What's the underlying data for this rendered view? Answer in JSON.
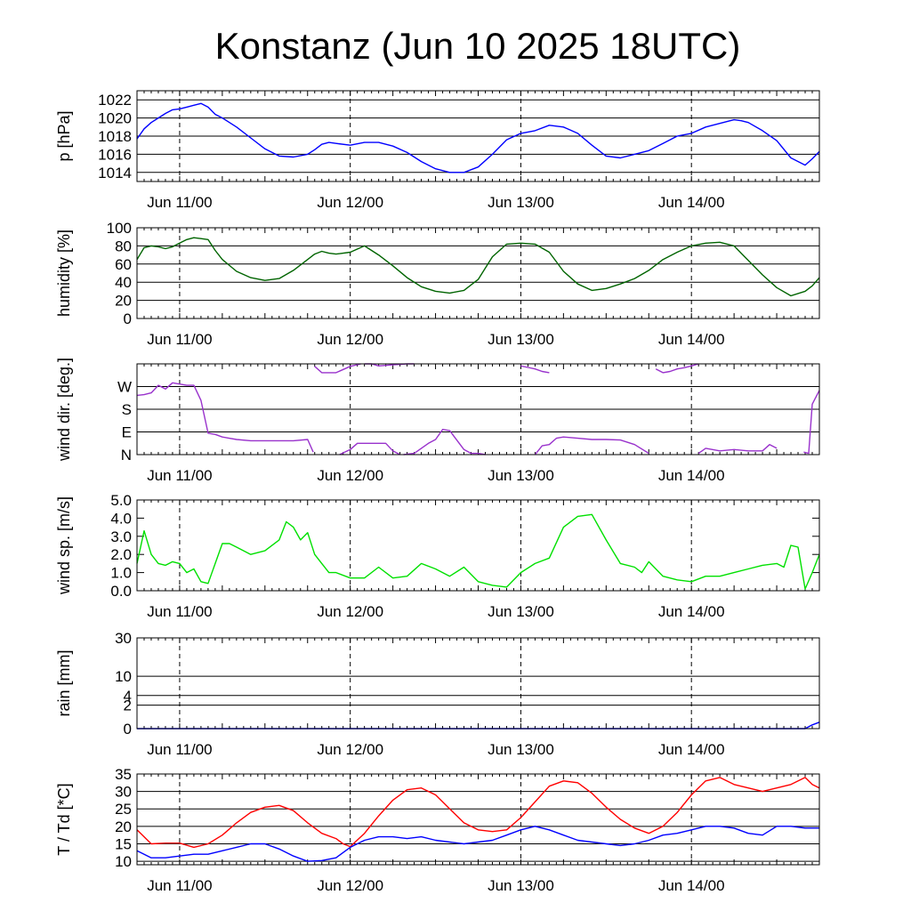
{
  "title": "Konstanz (Jun 10 2025 18UTC)",
  "x_tick_labels": [
    "Jun 11/00",
    "Jun 12/00",
    "Jun 13/00",
    "Jun 14/00"
  ],
  "chart_data": [
    {
      "type": "line",
      "ylabel": "p [hPa]",
      "x_unit": "hours since Jun 10 18UTC",
      "xlim": [
        0,
        96
      ],
      "ylim": [
        1013,
        1023
      ],
      "yticks": [
        1014,
        1016,
        1018,
        1020,
        1022
      ],
      "ytick_labels": [
        "1014",
        "1016",
        "1018",
        "1020",
        "1022"
      ],
      "grid": true,
      "series": [
        {
          "color": "#0000ff",
          "x": [
            0,
            1,
            2,
            3,
            4,
            5,
            6,
            7,
            8,
            9,
            10,
            11,
            12,
            14,
            16,
            18,
            20,
            22,
            24,
            25,
            26,
            27,
            28,
            30,
            32,
            34,
            36,
            38,
            40,
            42,
            44,
            46,
            48,
            50,
            52,
            54,
            56,
            58,
            60,
            62,
            64,
            66,
            68,
            70,
            72,
            74,
            76,
            78,
            80,
            82,
            84,
            85,
            86,
            88,
            90,
            92,
            94,
            95,
            96
          ],
          "y": [
            1017.7,
            1018.8,
            1019.5,
            1020.0,
            1020.5,
            1020.9,
            1021.0,
            1021.2,
            1021.4,
            1021.6,
            1021.2,
            1020.4,
            1020.0,
            1019.0,
            1017.8,
            1016.6,
            1015.8,
            1015.7,
            1016.0,
            1016.5,
            1017.1,
            1017.3,
            1017.2,
            1017.0,
            1017.3,
            1017.3,
            1016.9,
            1016.2,
            1015.2,
            1014.4,
            1014.0,
            1014.0,
            1014.6,
            1016.0,
            1017.6,
            1018.3,
            1018.6,
            1019.2,
            1019.0,
            1018.3,
            1017.0,
            1015.8,
            1015.6,
            1016.0,
            1016.4,
            1017.2,
            1018.0,
            1018.3,
            1019.0,
            1019.4,
            1019.8,
            1019.7,
            1019.5,
            1018.6,
            1017.5,
            1015.6,
            1014.8,
            1015.5,
            1016.3
          ]
        }
      ]
    },
    {
      "type": "line",
      "ylabel": "humidity [%]",
      "xlim": [
        0,
        96
      ],
      "ylim": [
        0,
        100
      ],
      "yticks": [
        0,
        20,
        40,
        60,
        80,
        100
      ],
      "ytick_labels": [
        "0",
        "20",
        "40",
        "60",
        "80",
        "100"
      ],
      "grid": true,
      "series": [
        {
          "color": "#006400",
          "x": [
            0,
            1,
            2,
            3,
            4,
            5,
            6,
            7,
            8,
            9,
            10,
            11,
            12,
            14,
            16,
            18,
            20,
            22,
            24,
            25,
            26,
            27,
            28,
            30,
            32,
            34,
            36,
            38,
            40,
            42,
            44,
            46,
            48,
            50,
            52,
            54,
            56,
            58,
            60,
            62,
            64,
            66,
            68,
            70,
            72,
            74,
            76,
            78,
            80,
            82,
            84,
            85,
            86,
            88,
            90,
            92,
            94,
            95,
            96
          ],
          "y": [
            65,
            78,
            80,
            79,
            77,
            79,
            83,
            87,
            89,
            88,
            87,
            75,
            65,
            52,
            45,
            42,
            44,
            53,
            65,
            71,
            74,
            72,
            71,
            73,
            80,
            70,
            58,
            45,
            35,
            30,
            28,
            31,
            43,
            68,
            82,
            83,
            82,
            73,
            52,
            38,
            31,
            33,
            38,
            44,
            53,
            65,
            73,
            80,
            83,
            84,
            80,
            72,
            64,
            48,
            34,
            25,
            30,
            36,
            45
          ]
        }
      ]
    },
    {
      "type": "line",
      "ylabel": "wind dir. [deg.]",
      "xlim": [
        0,
        96
      ],
      "ylim": [
        0,
        360
      ],
      "yticks": [
        0,
        90,
        180,
        270
      ],
      "ytick_labels": [
        "N",
        "E",
        "S",
        "W"
      ],
      "grid": true,
      "series": [
        {
          "name": "a",
          "color": "#9932cc",
          "x": [
            0,
            1,
            2,
            3,
            4,
            5,
            6,
            7,
            8,
            9,
            10,
            11,
            12,
            14,
            16,
            18,
            20,
            22,
            24,
            24.8
          ],
          "y": [
            235,
            238,
            245,
            275,
            260,
            285,
            280,
            275,
            275,
            215,
            85,
            80,
            70,
            60,
            55,
            55,
            55,
            55,
            60,
            10
          ]
        },
        {
          "name": "b",
          "color": "#9932cc",
          "x": [
            25,
            26,
            28,
            30,
            31.5
          ],
          "y": [
            350,
            325,
            325,
            350,
            360
          ]
        },
        {
          "name": "c",
          "color": "#9932cc",
          "x": [
            32,
            33,
            34,
            36,
            38,
            39
          ],
          "y": [
            360,
            360,
            352,
            356,
            360,
            360
          ]
        },
        {
          "name": "d",
          "color": "#9932cc",
          "x": [
            28.5,
            30,
            31,
            33,
            35,
            36,
            37
          ],
          "y": [
            0,
            20,
            45,
            45,
            45,
            15,
            0
          ]
        },
        {
          "name": "e",
          "color": "#9932cc",
          "x": [
            37.5,
            39,
            40,
            41,
            42,
            43,
            44,
            46,
            47,
            48,
            49
          ],
          "y": [
            0,
            5,
            25,
            45,
            60,
            100,
            95,
            20,
            5,
            5,
            0
          ]
        },
        {
          "name": "f",
          "color": "#9932cc",
          "x": [
            54,
            55,
            56,
            57,
            58
          ],
          "y": [
            352,
            346,
            340,
            330,
            325
          ]
        },
        {
          "name": "g",
          "color": "#9932cc",
          "x": [
            56,
            57,
            58,
            59,
            60,
            62,
            64,
            66,
            68,
            70,
            72
          ],
          "y": [
            0,
            35,
            40,
            65,
            70,
            65,
            60,
            60,
            58,
            40,
            5
          ]
        },
        {
          "name": "h",
          "color": "#9932cc",
          "x": [
            73,
            74,
            75,
            76,
            77,
            78,
            79
          ],
          "y": [
            340,
            325,
            330,
            340,
            345,
            352,
            360
          ]
        },
        {
          "name": "i",
          "color": "#9932cc",
          "x": [
            79,
            80,
            82,
            84,
            86,
            88,
            89,
            90
          ],
          "y": [
            5,
            25,
            15,
            20,
            15,
            15,
            40,
            25
          ]
        },
        {
          "name": "j",
          "color": "#9932cc",
          "x": [
            93.8,
            94.5,
            95,
            96
          ],
          "y": [
            10,
            5,
            200,
            255
          ]
        }
      ]
    },
    {
      "type": "line",
      "ylabel": "wind sp. [m/s]",
      "xlim": [
        0,
        96
      ],
      "ylim": [
        0,
        5
      ],
      "yticks": [
        0,
        1,
        2,
        3,
        4,
        5
      ],
      "ytick_labels": [
        "0.0",
        "1.0",
        "2.0",
        "3.0",
        "4.0",
        "5.0"
      ],
      "grid": false,
      "series": [
        {
          "color": "#00e000",
          "x": [
            0,
            1,
            2,
            3,
            4,
            5,
            6,
            7,
            8,
            9,
            10,
            11,
            12,
            13,
            14,
            16,
            18,
            20,
            21,
            22,
            23,
            24,
            25,
            26,
            27,
            28,
            30,
            32,
            34,
            36,
            38,
            40,
            42,
            44,
            46,
            48,
            50,
            52,
            54,
            56,
            58,
            60,
            62,
            64,
            66,
            68,
            70,
            71,
            72,
            73,
            74,
            76,
            78,
            80,
            82,
            84,
            86,
            88,
            90,
            91,
            92,
            93,
            94,
            95,
            96
          ],
          "y": [
            1.5,
            3.3,
            2.0,
            1.5,
            1.4,
            1.6,
            1.5,
            1.0,
            1.2,
            0.5,
            0.4,
            1.5,
            2.6,
            2.6,
            2.4,
            2.0,
            2.2,
            2.8,
            3.8,
            3.5,
            2.8,
            3.2,
            2.0,
            1.5,
            1.0,
            1.0,
            0.7,
            0.7,
            1.3,
            0.7,
            0.8,
            1.5,
            1.2,
            0.8,
            1.3,
            0.5,
            0.3,
            0.2,
            1.0,
            1.5,
            1.8,
            3.5,
            4.1,
            4.2,
            2.8,
            1.5,
            1.3,
            1.0,
            1.6,
            1.2,
            0.8,
            0.6,
            0.5,
            0.8,
            0.8,
            1.0,
            1.2,
            1.4,
            1.5,
            1.3,
            2.5,
            2.4,
            0.1,
            1.0,
            2.0
          ]
        }
      ]
    },
    {
      "type": "line",
      "ylabel": "rain [mm]",
      "xlim": [
        0,
        96
      ],
      "ylim": [
        0,
        30
      ],
      "yticks": [
        0,
        2,
        4,
        10,
        30
      ],
      "ytick_labels": [
        "0",
        "2",
        "4",
        "10",
        "30"
      ],
      "grid": true,
      "scale": "sqrt",
      "series": [
        {
          "color": "#0000ff",
          "x": [
            0,
            94,
            95,
            96
          ],
          "y": [
            0,
            0,
            0.05,
            0.15
          ]
        }
      ]
    },
    {
      "type": "line",
      "ylabel": "T / Td [*C]",
      "xlim": [
        0,
        96
      ],
      "ylim": [
        9,
        35
      ],
      "yticks": [
        10,
        15,
        20,
        25,
        30,
        35
      ],
      "ytick_labels": [
        "10",
        "15",
        "20",
        "25",
        "30",
        "35"
      ],
      "grid": true,
      "series": [
        {
          "name": "T",
          "color": "#ff0000",
          "x": [
            0,
            1,
            2,
            4,
            6,
            8,
            10,
            12,
            14,
            16,
            18,
            20,
            22,
            24,
            26,
            28,
            29,
            30,
            32,
            34,
            36,
            38,
            40,
            42,
            44,
            46,
            48,
            50,
            52,
            54,
            56,
            58,
            60,
            62,
            64,
            66,
            68,
            70,
            72,
            74,
            76,
            78,
            80,
            82,
            84,
            86,
            88,
            90,
            92,
            94,
            95,
            96
          ],
          "y": [
            19,
            17,
            15,
            15.2,
            15.2,
            14,
            15,
            17.5,
            21,
            24,
            25.5,
            26,
            24.5,
            21,
            18,
            16.5,
            15,
            14.2,
            18,
            23,
            27.5,
            30.5,
            31,
            29,
            25,
            21,
            19,
            18.5,
            19,
            22.5,
            27,
            31.5,
            33,
            32.5,
            29.5,
            25.5,
            22,
            19.5,
            18,
            20,
            24,
            29,
            33,
            34,
            32,
            31,
            30,
            31,
            32,
            34,
            32,
            31
          ]
        },
        {
          "name": "Td",
          "color": "#0000ff",
          "x": [
            0,
            1,
            2,
            4,
            6,
            8,
            10,
            12,
            14,
            16,
            18,
            20,
            22,
            24,
            26,
            28,
            30,
            32,
            34,
            36,
            38,
            40,
            42,
            44,
            46,
            48,
            50,
            52,
            54,
            56,
            58,
            60,
            62,
            64,
            66,
            68,
            70,
            72,
            74,
            76,
            78,
            80,
            82,
            84,
            86,
            88,
            90,
            92,
            94,
            95,
            96
          ],
          "y": [
            13,
            12,
            11,
            11,
            11.5,
            12,
            12,
            13,
            14,
            15,
            15,
            13.5,
            11.5,
            10,
            10.2,
            11,
            14,
            16,
            17,
            17,
            16.5,
            17,
            16,
            15.5,
            15,
            15.5,
            16,
            17.5,
            19,
            20,
            19,
            17.5,
            16,
            15.5,
            15,
            14.5,
            15,
            16,
            17.5,
            18,
            19,
            20,
            20,
            19.5,
            18,
            17.5,
            20,
            20,
            19.5,
            19.5,
            19.5
          ]
        }
      ]
    }
  ]
}
